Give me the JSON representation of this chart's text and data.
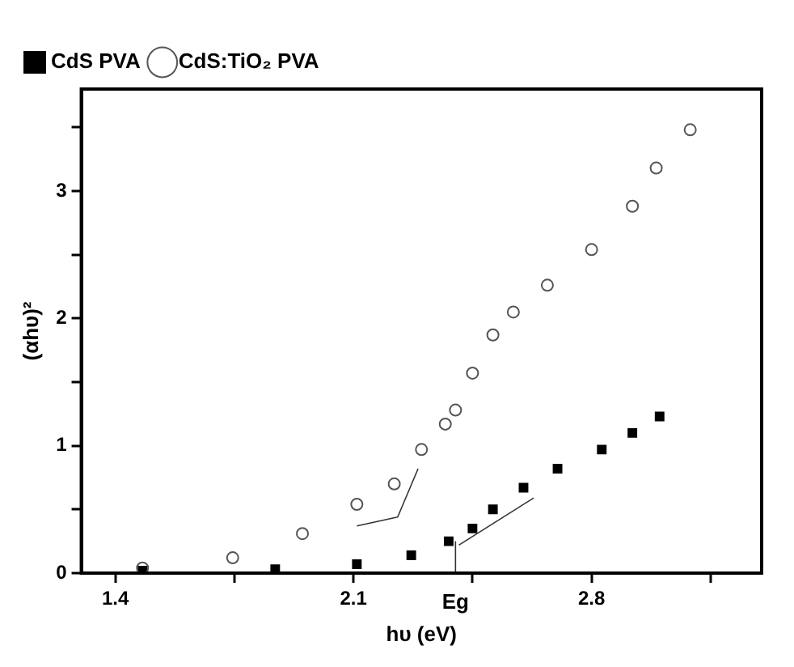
{
  "chart_data": {
    "type": "scatter",
    "xlabel": "hυ (eV)",
    "ylabel": "(αhυ)²",
    "xlim": [
      1.3,
      3.3
    ],
    "ylim": [
      0,
      3.8
    ],
    "xticks": [
      1.4,
      {
        "value": 1.75,
        "label": null
      },
      2.1,
      {
        "value": 2.45,
        "label": null
      },
      2.8,
      {
        "value": 3.15,
        "label": null
      }
    ],
    "yticks": [
      0,
      {
        "value": 0.5,
        "label": null
      },
      1,
      {
        "value": 1.5,
        "label": null
      },
      2,
      {
        "value": 2.5,
        "label": null
      },
      3,
      {
        "value": 3.5,
        "label": null
      }
    ],
    "grid": false,
    "legend": "top left",
    "annotations": [
      {
        "text": "Eg",
        "x": 2.4,
        "y": 0
      }
    ],
    "series": [
      {
        "name": "CdS PVA",
        "type": "scatter",
        "marker": "square",
        "color": "#000000",
        "x": [
          1.48,
          1.87,
          2.11,
          2.27,
          2.38,
          2.45,
          2.51,
          2.6,
          2.7,
          2.83,
          2.92,
          3.0
        ],
        "values": [
          0.02,
          0.03,
          0.07,
          0.14,
          0.25,
          0.35,
          0.5,
          0.67,
          0.82,
          0.97,
          1.1,
          1.23
        ]
      },
      {
        "name": "CdS:TiO₂ PVA",
        "type": "scatter",
        "marker": "circle",
        "color": "#555555",
        "x": [
          1.48,
          1.745,
          1.95,
          2.11,
          2.22,
          2.3,
          2.37,
          2.4,
          2.45,
          2.51,
          2.57,
          2.67,
          2.8,
          2.92,
          2.99,
          3.09
        ],
        "values": [
          0.04,
          0.12,
          0.31,
          0.54,
          0.7,
          0.97,
          1.17,
          1.28,
          1.57,
          1.87,
          2.05,
          2.26,
          2.54,
          2.88,
          3.18,
          3.48
        ]
      },
      {
        "type": "line",
        "marker": "none",
        "color": "#333333",
        "x": [
          2.11,
          2.23,
          2.29
        ],
        "values": [
          0.37,
          0.44,
          0.82
        ]
      },
      {
        "type": "line",
        "marker": "none",
        "color": "#333333",
        "x": [
          2.41,
          2.63
        ],
        "values": [
          0.22,
          0.59
        ]
      },
      {
        "type": "line",
        "marker": "none",
        "color": "#333333",
        "x": [
          2.4,
          2.4
        ],
        "values": [
          0,
          0.25
        ]
      }
    ]
  }
}
